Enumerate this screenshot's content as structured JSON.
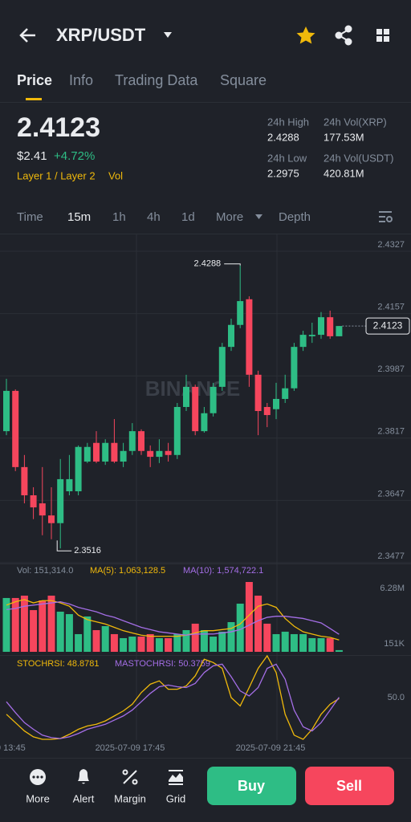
{
  "header": {
    "pair": "XRP/USDT"
  },
  "tabs": [
    "Price",
    "Info",
    "Trading Data",
    "Square"
  ],
  "ticker": {
    "price": "2.4123",
    "fiat": "$2.41",
    "change": "+4.72%",
    "tags": [
      "Layer 1 / Layer 2",
      "Vol"
    ],
    "stats": [
      {
        "label": "24h High",
        "value": "2.4288"
      },
      {
        "label": "24h Vol(XRP)",
        "value": "177.53M"
      },
      {
        "label": "24h Low",
        "value": "2.2975"
      },
      {
        "label": "24h Vol(USDT)",
        "value": "420.81M"
      }
    ]
  },
  "timeframes": [
    "Time",
    "15m",
    "1h",
    "4h",
    "1d",
    "More",
    "Depth"
  ],
  "chart": {
    "type": "candlestick",
    "watermark": "BINANCE",
    "up_color": "#2ebd85",
    "down_color": "#f6465d",
    "ylim": [
      2.3477,
      2.4327
    ],
    "yticks": [
      2.4327,
      2.4157,
      2.3987,
      2.3817,
      2.3647,
      2.3477
    ],
    "candles": [
      [
        2.3836,
        2.3979,
        2.3825,
        2.3946
      ],
      [
        2.3946,
        2.395,
        2.3727,
        2.3738
      ],
      [
        2.3738,
        2.3771,
        2.3639,
        2.3661
      ],
      [
        2.3661,
        2.3683,
        2.3596,
        2.3628
      ],
      [
        2.3639,
        2.3738,
        2.3552,
        2.3606
      ],
      [
        2.3606,
        2.3683,
        2.3541,
        2.3585
      ],
      [
        2.3585,
        2.376,
        2.3516,
        2.3705
      ],
      [
        2.3672,
        2.3771,
        2.3661,
        2.3705
      ],
      [
        2.3672,
        2.3797,
        2.3661,
        2.3793
      ],
      [
        2.3753,
        2.3804,
        2.3749,
        2.3793
      ],
      [
        2.3804,
        2.3836,
        2.3749,
        2.3753
      ],
      [
        2.3753,
        2.3814,
        2.3744,
        2.3804
      ],
      [
        2.3804,
        2.3869,
        2.3749,
        2.3753
      ],
      [
        2.3753,
        2.3804,
        2.3738,
        2.3782
      ],
      [
        2.3782,
        2.3858,
        2.3771,
        2.3836
      ],
      [
        2.3836,
        2.3841,
        2.3771,
        2.3782
      ],
      [
        2.3782,
        2.3797,
        2.3738,
        2.3766
      ],
      [
        2.3766,
        2.3814,
        2.3749,
        2.3782
      ],
      [
        2.3782,
        2.3804,
        2.3753,
        2.3771
      ],
      [
        2.3771,
        2.3913,
        2.376,
        2.3902
      ],
      [
        2.3902,
        2.399,
        2.3891,
        2.3957
      ],
      [
        2.3957,
        2.3963,
        2.3825,
        2.3836
      ],
      [
        2.3836,
        2.3902,
        2.3832,
        2.3885
      ],
      [
        2.3885,
        2.3968,
        2.3876,
        2.3957
      ],
      [
        2.3957,
        2.4077,
        2.3946,
        2.4066
      ],
      [
        2.4066,
        2.4143,
        2.4055,
        2.4126
      ],
      [
        2.4126,
        2.4288,
        2.4117,
        2.4191
      ],
      [
        2.4196,
        2.4204,
        2.3957,
        2.399
      ],
      [
        2.399,
        2.4001,
        2.3825,
        2.3891
      ],
      [
        2.3902,
        2.3913,
        2.3847,
        2.388
      ],
      [
        2.3896,
        2.3968,
        2.3869,
        2.3924
      ],
      [
        2.3924,
        2.399,
        2.3913,
        2.3953
      ],
      [
        2.3953,
        2.4077,
        2.3946,
        2.4066
      ],
      [
        2.4066,
        2.411,
        2.4055,
        2.4099
      ],
      [
        2.4095,
        2.4132,
        2.4077,
        2.4099
      ],
      [
        2.4099,
        2.4161,
        2.4088,
        2.4147
      ],
      [
        2.4147,
        2.4165,
        2.4088,
        2.4095
      ],
      [
        2.4095,
        2.4123,
        2.4095,
        2.4123
      ]
    ],
    "volume": {
      "legend": [
        "Vol: 151,314.0",
        "MA(5): 1,063,128.5",
        "MA(10): 1,574,722.1"
      ],
      "ylim": [
        0,
        6.28
      ],
      "yticks": [
        {
          "value": 6.28,
          "label": "6.28M"
        },
        {
          "value": 0.151,
          "label": "151K"
        }
      ],
      "values": [
        4.84,
        4.84,
        5.05,
        3.75,
        4.62,
        5.05,
        3.61,
        3.39,
        1.59,
        3.18,
        1.95,
        2.31,
        1.59,
        1.23,
        1.37,
        1.37,
        1.59,
        1.23,
        1.23,
        1.59,
        1.95,
        2.53,
        1.95,
        1.37,
        1.81,
        2.67,
        4.33,
        6.28,
        5.05,
        2.53,
        1.59,
        1.81,
        1.59,
        1.59,
        1.23,
        1.23,
        1.23,
        0.151314
      ],
      "series": [
        {
          "name": "MA(5)",
          "color": "#f0b90b",
          "values": [
            4.2,
            4.5,
            4.7,
            4.4,
            4.6,
            4.6,
            4.4,
            4.1,
            3.3,
            2.9,
            2.7,
            2.5,
            2.2,
            1.9,
            1.7,
            1.5,
            1.4,
            1.4,
            1.4,
            1.4,
            1.5,
            1.7,
            1.9,
            1.9,
            2.0,
            2.1,
            2.5,
            3.3,
            4.1,
            4.3,
            4.0,
            3.0,
            2.3,
            1.8,
            1.6,
            1.4,
            1.3,
            1.0631285
          ]
        },
        {
          "name": "MA(10)",
          "color": "#a46ee6",
          "values": [
            3.8,
            3.9,
            4.1,
            4.2,
            4.3,
            4.4,
            4.5,
            4.3,
            4.0,
            3.8,
            3.6,
            3.3,
            3.1,
            2.8,
            2.5,
            2.2,
            2.0,
            1.8,
            1.7,
            1.6,
            1.5,
            1.6,
            1.6,
            1.6,
            1.7,
            1.8,
            2.0,
            2.4,
            2.8,
            3.1,
            3.2,
            3.2,
            3.1,
            3.0,
            2.8,
            2.6,
            2.1,
            1.5747221
          ]
        }
      ]
    },
    "stoch": {
      "legend": [
        "STOCHRSI: 48.8781",
        "MASTOCHRSI: 50.3759"
      ],
      "ylim": [
        0,
        100
      ],
      "yticks": [
        {
          "value": 50,
          "label": "50.0"
        }
      ],
      "series": [
        {
          "name": "STOCHRSI",
          "color": "#f0b90b",
          "values": [
            30,
            20,
            10,
            3,
            0,
            0,
            1,
            6,
            12,
            16,
            18,
            22,
            28,
            34,
            42,
            56,
            66,
            70,
            60,
            60,
            64,
            76,
            96,
            92,
            85,
            50,
            40,
            62,
            85,
            100,
            80,
            30,
            5,
            0,
            12,
            30,
            42,
            48.8781
          ]
        },
        {
          "name": "MASTOCHRSI",
          "color": "#a46ee6",
          "values": [
            45,
            32,
            20,
            12,
            5,
            2,
            1,
            3,
            7,
            12,
            15,
            18,
            23,
            28,
            35,
            45,
            55,
            63,
            65,
            63,
            62,
            67,
            80,
            88,
            90,
            75,
            58,
            52,
            62,
            85,
            90,
            72,
            35,
            15,
            10,
            20,
            35,
            50.3759
          ]
        }
      ]
    },
    "time_labels": [
      "9 13:45",
      "2025-07-09 17:45",
      "2025-07-09 21:45"
    ]
  },
  "bottom_nav": [
    "More",
    "Alert",
    "Margin",
    "Grid"
  ],
  "actions": [
    "Buy",
    "Sell"
  ]
}
